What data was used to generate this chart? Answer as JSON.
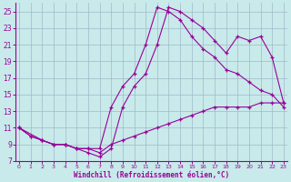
{
  "background_color": "#c8eaea",
  "grid_color": "#a0b8c8",
  "line_color": "#990099",
  "xlabel": "Windchill (Refroidissement éolien,°C)",
  "xlim_min": 0,
  "xlim_max": 23,
  "ylim_min": 7,
  "ylim_max": 26,
  "yticks": [
    7,
    9,
    11,
    13,
    15,
    17,
    19,
    21,
    23,
    25
  ],
  "xticks": [
    0,
    1,
    2,
    3,
    4,
    5,
    6,
    7,
    8,
    9,
    10,
    11,
    12,
    13,
    14,
    15,
    16,
    17,
    18,
    19,
    20,
    21,
    22,
    23
  ],
  "line1_x": [
    0,
    1,
    2,
    3,
    4,
    5,
    6,
    7,
    8,
    9,
    10,
    11,
    12,
    13,
    14,
    15,
    16,
    17,
    18,
    19,
    20,
    21,
    22,
    23
  ],
  "line1_y": [
    11,
    10,
    9.5,
    9,
    9,
    8.5,
    8.5,
    8,
    9,
    9.5,
    10,
    10.5,
    11,
    11.5,
    12,
    12.5,
    13,
    13.5,
    13.5,
    13.5,
    13.5,
    14,
    14,
    14
  ],
  "line2_x": [
    0,
    1,
    2,
    3,
    4,
    5,
    6,
    7,
    8,
    9,
    10,
    11,
    12,
    13,
    14,
    15,
    16,
    17,
    18,
    19,
    20,
    21,
    22,
    23
  ],
  "line2_y": [
    11,
    10,
    9.5,
    9,
    9,
    8.5,
    8.5,
    8.5,
    13.5,
    16,
    17.5,
    21,
    25.5,
    25,
    24,
    22,
    20.5,
    19.5,
    18,
    17.5,
    16.5,
    15.5,
    15,
    13.5
  ],
  "line3_x": [
    0,
    2,
    3,
    4,
    5,
    6,
    7,
    8,
    9,
    10,
    11,
    12,
    13,
    14,
    15,
    16,
    17,
    18,
    19,
    20,
    21,
    22,
    23
  ],
  "line3_y": [
    11,
    9.5,
    9,
    9,
    8.5,
    8,
    7.5,
    8.5,
    13.5,
    16,
    17.5,
    21,
    25.5,
    25,
    24,
    23,
    21.5,
    20,
    22,
    21.5,
    22,
    19.5,
    14
  ]
}
